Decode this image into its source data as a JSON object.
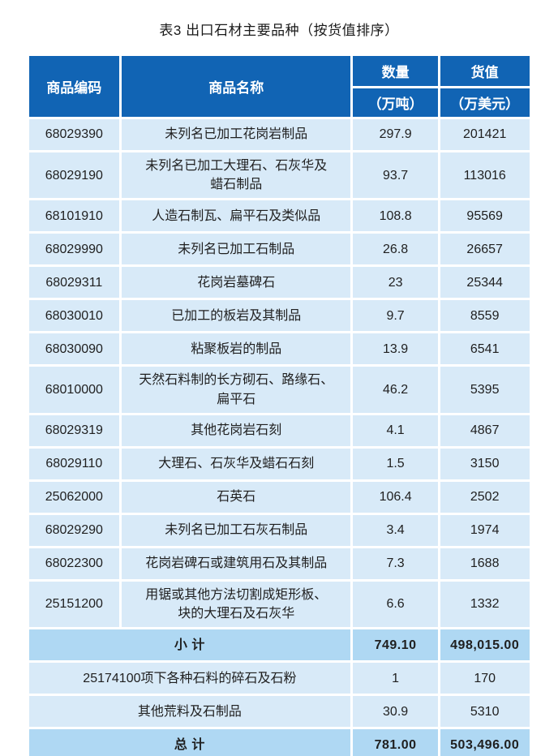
{
  "title": "表3 出口石材主要品种（按货值排序）",
  "colors": {
    "header_bg": "#1164B4",
    "header_text": "#FFFFFF",
    "row_bg": "#D8EAF8",
    "summary_row_bg": "#AFD8F3",
    "gridline": "#FFFFFF",
    "body_text": "#1F1F1F"
  },
  "table": {
    "headers": {
      "code": "商品编码",
      "name": "商品名称",
      "qty": "数量",
      "qty_unit": "（万吨）",
      "value": "货值",
      "value_unit": "（万美元）"
    },
    "rows": [
      {
        "code": "68029390",
        "name": "未列名已加工花岗岩制品",
        "qty": "297.9",
        "value": "201421"
      },
      {
        "code": "68029190",
        "name": "未列名已加工大理石、石灰华及\n蜡石制品",
        "qty": "93.7",
        "value": "113016"
      },
      {
        "code": "68101910",
        "name": "人造石制瓦、扁平石及类似品",
        "qty": "108.8",
        "value": "95569"
      },
      {
        "code": "68029990",
        "name": "未列名已加工石制品",
        "qty": "26.8",
        "value": "26657"
      },
      {
        "code": "68029311",
        "name": "花岗岩墓碑石",
        "qty": "23",
        "value": "25344"
      },
      {
        "code": "68030010",
        "name": "已加工的板岩及其制品",
        "qty": "9.7",
        "value": "8559"
      },
      {
        "code": "68030090",
        "name": "粘聚板岩的制品",
        "qty": "13.9",
        "value": "6541"
      },
      {
        "code": "68010000",
        "name": "天然石料制的长方砌石、路缘石、\n扁平石",
        "qty": "46.2",
        "value": "5395"
      },
      {
        "code": "68029319",
        "name": "其他花岗岩石刻",
        "qty": "4.1",
        "value": "4867"
      },
      {
        "code": "68029110",
        "name": "大理石、石灰华及蜡石石刻",
        "qty": "1.5",
        "value": "3150"
      },
      {
        "code": "25062000",
        "name": "石英石",
        "qty": "106.4",
        "value": "2502"
      },
      {
        "code": "68029290",
        "name": "未列名已加工石灰石制品",
        "qty": "3.4",
        "value": "1974"
      },
      {
        "code": "68022300",
        "name": "花岗岩碑石或建筑用石及其制品",
        "qty": "7.3",
        "value": "1688"
      },
      {
        "code": "25151200",
        "name": "用锯或其他方法切割成矩形板、\n块的大理石及石灰华",
        "qty": "6.6",
        "value": "1332"
      }
    ],
    "summary_rows": [
      {
        "label": "小 计",
        "qty": "749.10",
        "value": "498,015.00",
        "emphasis": true
      },
      {
        "label": "25174100项下各种石料的碎石及石粉",
        "qty": "1",
        "value": "170",
        "emphasis": false
      },
      {
        "label": "其他荒料及石制品",
        "qty": "30.9",
        "value": "5310",
        "emphasis": false
      },
      {
        "label": "总 计",
        "qty": "781.00",
        "value": "503,496.00",
        "emphasis": true
      }
    ]
  }
}
